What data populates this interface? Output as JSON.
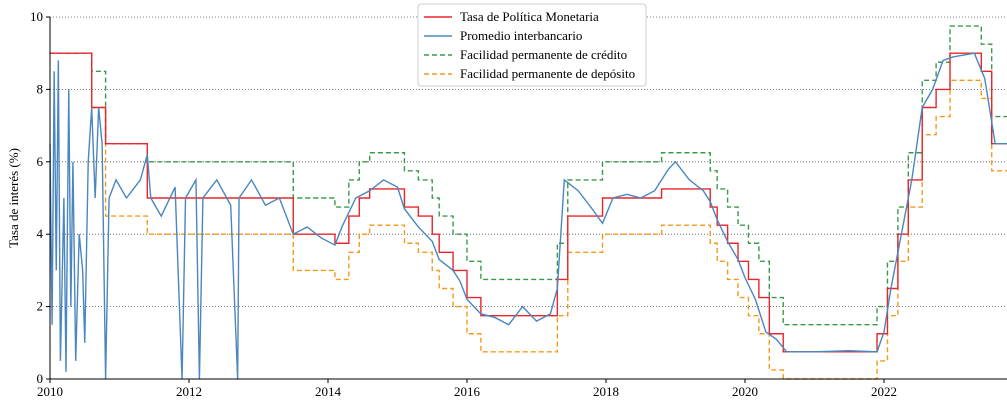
{
  "chart_data": {
    "type": "line",
    "ylabel": "Tasa de interés (%)",
    "xlim": [
      2010,
      2023.77
    ],
    "xticks": [
      2010,
      2012,
      2014,
      2016,
      2018,
      2020,
      2022
    ],
    "ylim": [
      0,
      10
    ],
    "yticks": [
      0,
      2,
      4,
      6,
      8,
      10
    ],
    "grid": true,
    "legend": "upper center",
    "series": [
      {
        "name": "Tasa de Política Monetaria",
        "color": "#e8262b",
        "dash": "solid",
        "x": [
          2010,
          2010.6,
          2010.6,
          2010.8,
          2010.8,
          2011.4,
          2011.4,
          2013.5,
          2013.5,
          2014.1,
          2014.1,
          2014.3,
          2014.3,
          2014.45,
          2014.45,
          2014.6,
          2014.6,
          2015.1,
          2015.1,
          2015.3,
          2015.3,
          2015.5,
          2015.5,
          2015.6,
          2015.6,
          2015.8,
          2015.8,
          2016.0,
          2016.0,
          2016.2,
          2016.2,
          2017.3,
          2017.3,
          2017.45,
          2017.45,
          2017.95,
          2017.95,
          2018.8,
          2018.8,
          2019.5,
          2019.5,
          2019.6,
          2019.6,
          2019.75,
          2019.75,
          2019.9,
          2019.9,
          2020.05,
          2020.05,
          2020.2,
          2020.2,
          2020.35,
          2020.35,
          2020.55,
          2020.55,
          2021.9,
          2021.9,
          2022.05,
          2022.05,
          2022.2,
          2022.2,
          2022.35,
          2022.35,
          2022.55,
          2022.55,
          2022.75,
          2022.75,
          2022.95,
          2022.95,
          2023.4,
          2023.4,
          2023.55,
          2023.55,
          2023.77
        ],
        "values": [
          9,
          9,
          7.5,
          7.5,
          6.5,
          6.5,
          5,
          5,
          4,
          4,
          3.75,
          3.75,
          4.5,
          4.5,
          5,
          5,
          5.25,
          5.25,
          4.75,
          4.75,
          4.5,
          4.5,
          4,
          4,
          3.5,
          3.5,
          3,
          3,
          2.25,
          2.25,
          1.75,
          1.75,
          2.75,
          2.75,
          4.5,
          4.5,
          5,
          5,
          5.25,
          5.25,
          4.75,
          4.75,
          4.25,
          4.25,
          3.75,
          3.75,
          3.25,
          3.25,
          2.75,
          2.75,
          2.25,
          2.25,
          1.25,
          1.25,
          0.75,
          0.75,
          1.25,
          1.25,
          2.5,
          2.5,
          4,
          4,
          5.5,
          5.5,
          7.5,
          7.5,
          8,
          8,
          9,
          9,
          8.5,
          8.5,
          6.5,
          6.5
        ]
      },
      {
        "name": "Promedio interbancario",
        "color": "#4a86c0",
        "dash": "solid",
        "x": [
          2010.0,
          2010.03,
          2010.06,
          2010.09,
          2010.12,
          2010.15,
          2010.2,
          2010.23,
          2010.27,
          2010.3,
          2010.33,
          2010.37,
          2010.42,
          2010.47,
          2010.5,
          2010.55,
          2010.6,
          2010.65,
          2010.7,
          2010.75,
          2010.8,
          2010.85,
          2010.95,
          2011.1,
          2011.3,
          2011.4,
          2011.45,
          2011.6,
          2011.8,
          2011.9,
          2011.95,
          2012.1,
          2012.15,
          2012.2,
          2012.4,
          2012.6,
          2012.7,
          2012.72,
          2012.9,
          2013.1,
          2013.3,
          2013.5,
          2013.7,
          2013.9,
          2014.1,
          2014.2,
          2014.4,
          2014.6,
          2014.8,
          2015.0,
          2015.1,
          2015.3,
          2015.5,
          2015.6,
          2015.8,
          2015.9,
          2016.0,
          2016.2,
          2016.4,
          2016.6,
          2016.8,
          2017.0,
          2017.2,
          2017.3,
          2017.4,
          2017.6,
          2017.8,
          2017.95,
          2018.1,
          2018.3,
          2018.5,
          2018.7,
          2018.9,
          2019.0,
          2019.2,
          2019.4,
          2019.5,
          2019.6,
          2019.75,
          2019.9,
          2020.0,
          2020.15,
          2020.3,
          2020.45,
          2020.6,
          2021.0,
          2021.5,
          2021.9,
          2022.0,
          2022.1,
          2022.25,
          2022.4,
          2022.55,
          2022.7,
          2022.85,
          2023.0,
          2023.3,
          2023.45,
          2023.6,
          2023.77
        ],
        "values": [
          6.5,
          1.5,
          8.5,
          3,
          8.8,
          0.5,
          5,
          0.2,
          8,
          2,
          6,
          0.5,
          4,
          3,
          1,
          6,
          7.5,
          5,
          7.5,
          6.5,
          0,
          5,
          5.5,
          5,
          5.5,
          6.2,
          5,
          4.5,
          5.3,
          0,
          5,
          5.5,
          0,
          5,
          5.5,
          4.8,
          0,
          5,
          5.5,
          4.8,
          5,
          4,
          4.2,
          3.9,
          3.7,
          4.2,
          5,
          5.2,
          5.5,
          5.3,
          4.7,
          4.2,
          3.8,
          3.3,
          3,
          2.7,
          2.2,
          1.8,
          1.7,
          1.5,
          2,
          1.6,
          1.8,
          2.5,
          5.5,
          5.2,
          4.7,
          4.3,
          5,
          5.1,
          5,
          5.2,
          5.8,
          6,
          5.5,
          5.2,
          4.9,
          4.4,
          3.8,
          3.3,
          2.8,
          2.2,
          1.3,
          1.1,
          0.75,
          0.75,
          0.78,
          0.75,
          1.3,
          2.5,
          4,
          5.5,
          7.5,
          8,
          8.8,
          8.9,
          9,
          8.3,
          6.5,
          6.5
        ]
      },
      {
        "name": "Facilidad permanente de crédito",
        "color": "#3a9a4a",
        "dash": "dashed",
        "x": [
          2010,
          2010.6,
          2010.6,
          2010.8,
          2010.8,
          2011.4,
          2011.4,
          2013.5,
          2013.5,
          2014.1,
          2014.1,
          2014.3,
          2014.3,
          2014.45,
          2014.45,
          2014.6,
          2014.6,
          2015.1,
          2015.1,
          2015.3,
          2015.3,
          2015.5,
          2015.5,
          2015.6,
          2015.6,
          2015.8,
          2015.8,
          2016.0,
          2016.0,
          2016.2,
          2016.2,
          2017.3,
          2017.3,
          2017.45,
          2017.45,
          2017.95,
          2017.95,
          2018.8,
          2018.8,
          2019.5,
          2019.5,
          2019.6,
          2019.6,
          2019.75,
          2019.75,
          2019.9,
          2019.9,
          2020.05,
          2020.05,
          2020.2,
          2020.2,
          2020.35,
          2020.35,
          2020.55,
          2020.55,
          2021.9,
          2021.9,
          2022.05,
          2022.05,
          2022.2,
          2022.2,
          2022.35,
          2022.35,
          2022.55,
          2022.55,
          2022.75,
          2022.75,
          2022.95,
          2022.95,
          2023.4,
          2023.4,
          2023.55,
          2023.55,
          2023.77
        ],
        "values": [
          9,
          9,
          8.5,
          8.5,
          6.5,
          6.5,
          6,
          6,
          5,
          5,
          4.75,
          4.75,
          5.5,
          5.5,
          6,
          6,
          6.25,
          6.25,
          5.75,
          5.75,
          5.5,
          5.5,
          5,
          5,
          4.5,
          4.5,
          4,
          4,
          3.25,
          3.25,
          2.75,
          2.75,
          3.75,
          3.75,
          5.5,
          5.5,
          6,
          6,
          6.25,
          6.25,
          5.75,
          5.75,
          5.25,
          5.25,
          4.75,
          4.75,
          4.25,
          4.25,
          3.75,
          3.75,
          3.25,
          3.25,
          2.25,
          2.25,
          1.5,
          1.5,
          2,
          2,
          3.25,
          3.25,
          4.75,
          4.75,
          6.25,
          6.25,
          8.25,
          8.25,
          8.75,
          8.75,
          9.75,
          9.75,
          9.25,
          9.25,
          7.25,
          7.25
        ]
      },
      {
        "name": "Facilidad permanente de depósito",
        "color": "#f39a1e",
        "dash": "dashed",
        "x": [
          2010,
          2010.6,
          2010.6,
          2010.8,
          2010.8,
          2011.4,
          2011.4,
          2013.5,
          2013.5,
          2014.1,
          2014.1,
          2014.3,
          2014.3,
          2014.45,
          2014.45,
          2014.6,
          2014.6,
          2015.1,
          2015.1,
          2015.3,
          2015.3,
          2015.5,
          2015.5,
          2015.6,
          2015.6,
          2015.8,
          2015.8,
          2016.0,
          2016.0,
          2016.2,
          2016.2,
          2017.3,
          2017.3,
          2017.45,
          2017.45,
          2017.95,
          2017.95,
          2018.8,
          2018.8,
          2019.5,
          2019.5,
          2019.6,
          2019.6,
          2019.75,
          2019.75,
          2019.9,
          2019.9,
          2020.05,
          2020.05,
          2020.2,
          2020.2,
          2020.35,
          2020.35,
          2020.55,
          2020.55,
          2021.9,
          2021.9,
          2022.05,
          2022.05,
          2022.2,
          2022.2,
          2022.35,
          2022.35,
          2022.55,
          2022.55,
          2022.75,
          2022.75,
          2022.95,
          2022.95,
          2023.4,
          2023.4,
          2023.55,
          2023.55,
          2023.77
        ],
        "values": [
          9,
          9,
          7.5,
          7.5,
          4.5,
          4.5,
          4,
          4,
          3,
          3,
          2.75,
          2.75,
          3.5,
          3.5,
          4,
          4,
          4.25,
          4.25,
          3.75,
          3.75,
          3.5,
          3.5,
          3,
          3,
          2.5,
          2.5,
          2,
          2,
          1.25,
          1.25,
          0.75,
          0.75,
          1.75,
          1.75,
          3.5,
          3.5,
          4,
          4,
          4.25,
          4.25,
          3.75,
          3.75,
          3.25,
          3.25,
          2.75,
          2.75,
          2.25,
          2.25,
          1.75,
          1.75,
          1.25,
          1.25,
          0.25,
          0.25,
          0,
          0,
          0.5,
          0.5,
          1.75,
          1.75,
          3.25,
          3.25,
          4.75,
          4.75,
          6.75,
          6.75,
          7.25,
          7.25,
          8.25,
          8.25,
          7.75,
          7.75,
          5.75,
          5.75
        ]
      }
    ]
  }
}
